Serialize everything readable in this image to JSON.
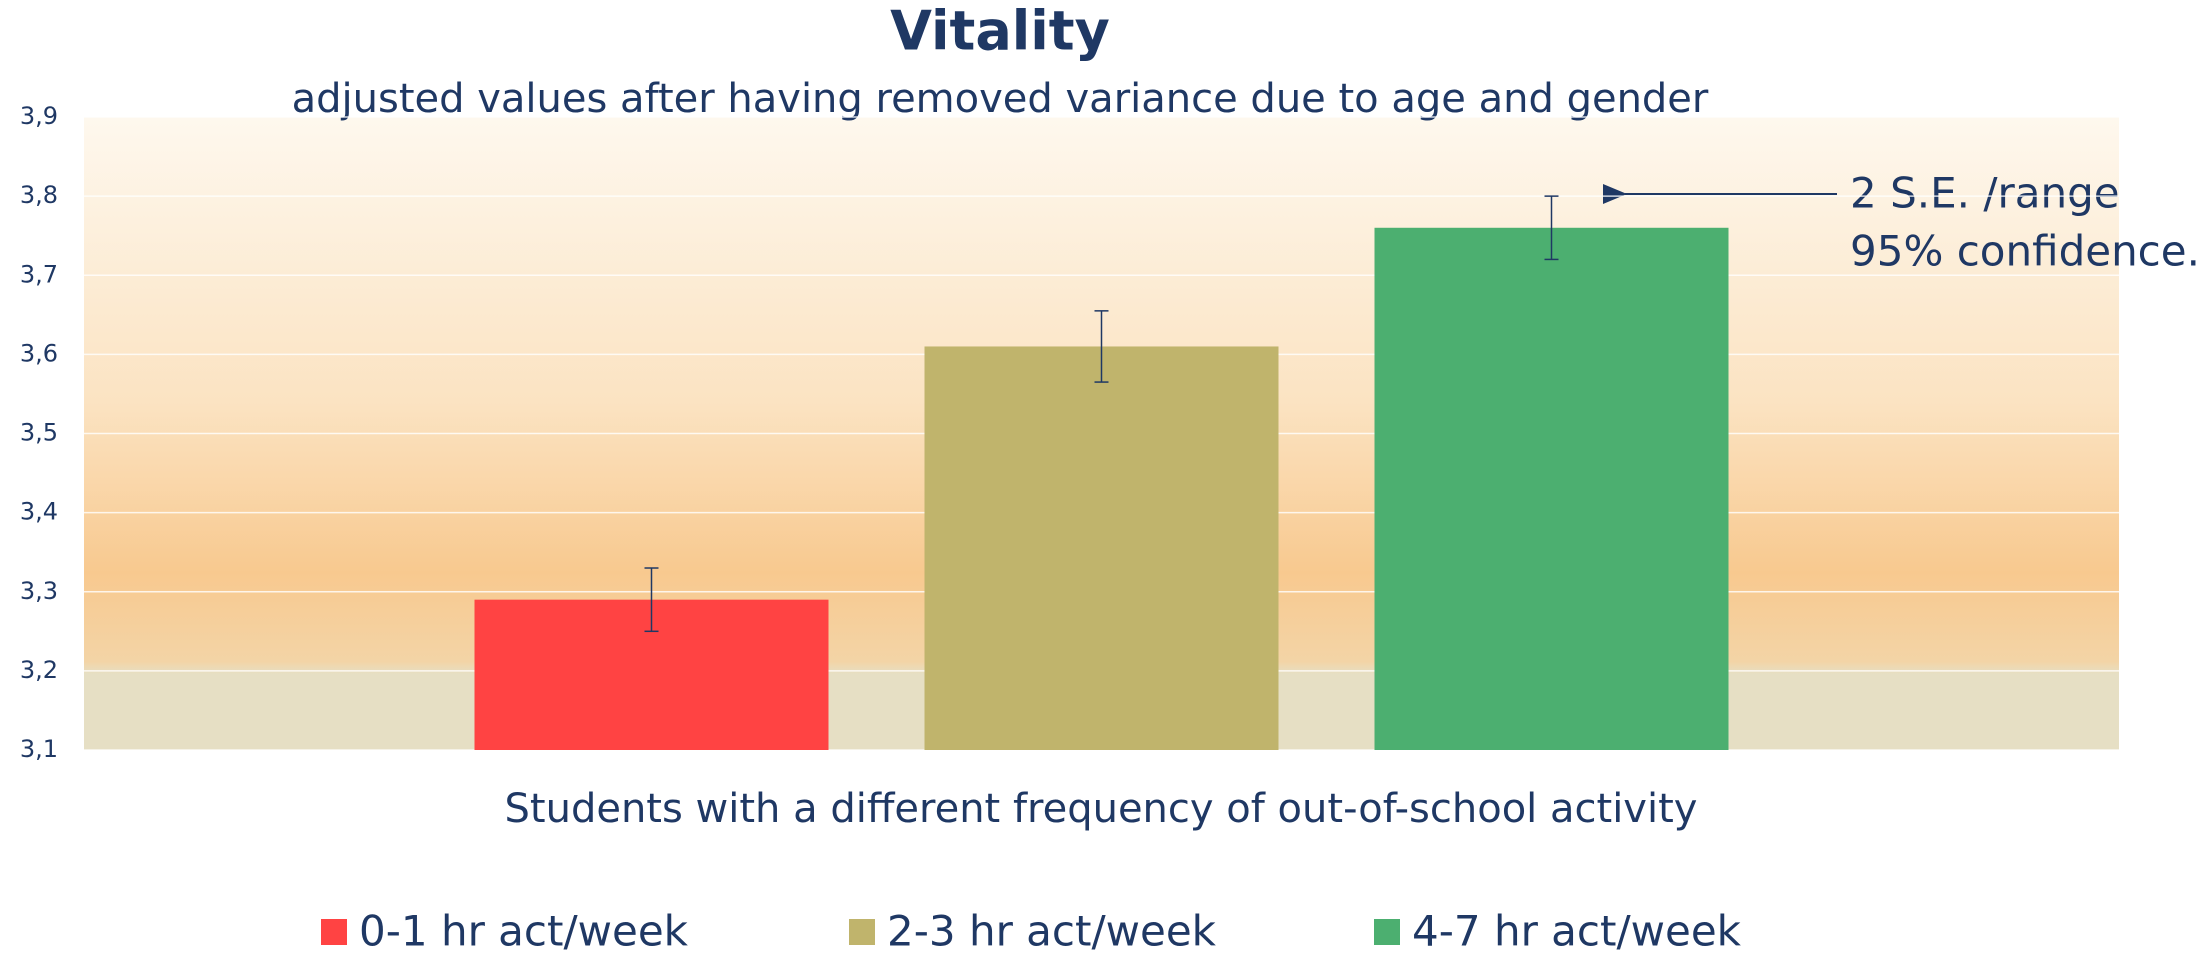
{
  "chart_data": {
    "type": "bar",
    "title": "Vitality",
    "subtitle": "adjusted values after having removed variance due to age and gender",
    "x_label": "Students with a different frequency of out-of-school activity",
    "annotations": [
      "2 S.E. /range",
      "95% confidence."
    ],
    "series": [
      {
        "name": "0-1 hr act/week",
        "color": "#ff4343",
        "values": [
          3.29
        ],
        "errors": [
          0.04
        ]
      },
      {
        "name": "2-3 hr act/week",
        "color": "#c0b46c",
        "values": [
          3.61
        ],
        "errors": [
          0.045
        ]
      },
      {
        "name": "4-7 hr act/week",
        "color": "#4caf70",
        "values": [
          3.76
        ],
        "errors": [
          0.04
        ]
      }
    ],
    "ylim": [
      3.1,
      3.9
    ],
    "yticks": [
      {
        "value": 3.1,
        "label": "3,1"
      },
      {
        "value": 3.2,
        "label": "3,2"
      },
      {
        "value": 3.3,
        "label": "3,3"
      },
      {
        "value": 3.4,
        "label": "3,4"
      },
      {
        "value": 3.5,
        "label": "3,5"
      },
      {
        "value": 3.6,
        "label": "3,6"
      },
      {
        "value": 3.7,
        "label": "3,7"
      },
      {
        "value": 3.8,
        "label": "3,8"
      },
      {
        "value": 3.9,
        "label": "3,9"
      }
    ],
    "grid": true,
    "legend": "bottom"
  }
}
